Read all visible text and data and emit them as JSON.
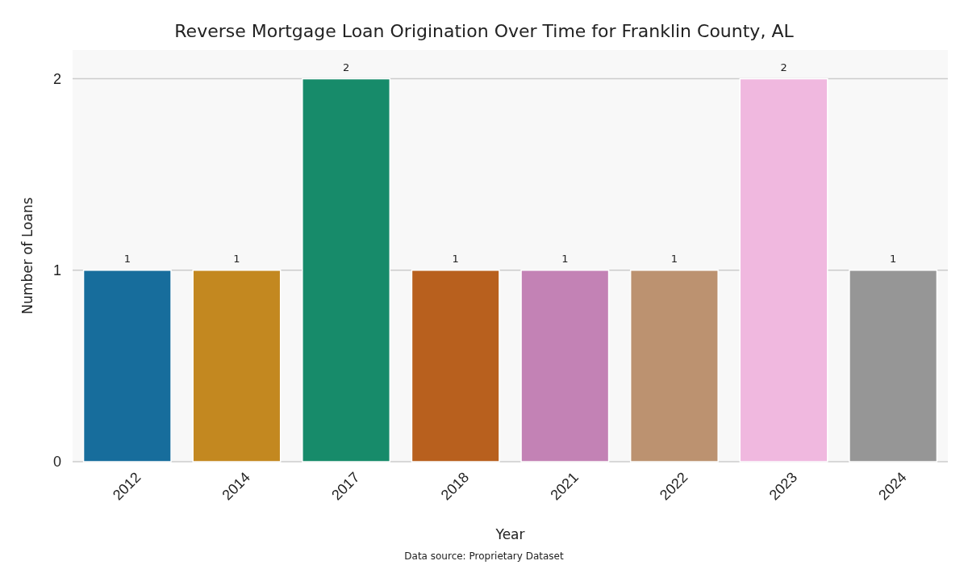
{
  "chart_data": {
    "type": "bar",
    "title": "Reverse Mortgage Loan Origination Over Time for Franklin County, AL",
    "xlabel": "Year",
    "ylabel": "Number of Loans",
    "categories": [
      "2012",
      "2014",
      "2017",
      "2018",
      "2021",
      "2022",
      "2023",
      "2024"
    ],
    "values": [
      1,
      1,
      2,
      1,
      1,
      1,
      2,
      1
    ],
    "colors": [
      "#176d9c",
      "#c38820",
      "#178b6a",
      "#b8601e",
      "#c382b5",
      "#bc9270",
      "#f0b8df",
      "#969696"
    ],
    "ylim": [
      0,
      2.15
    ],
    "yticks": [
      0,
      1,
      2
    ],
    "grid": "y",
    "data_labels": true,
    "annotations": [
      "Data source: Proprietary Dataset"
    ]
  }
}
